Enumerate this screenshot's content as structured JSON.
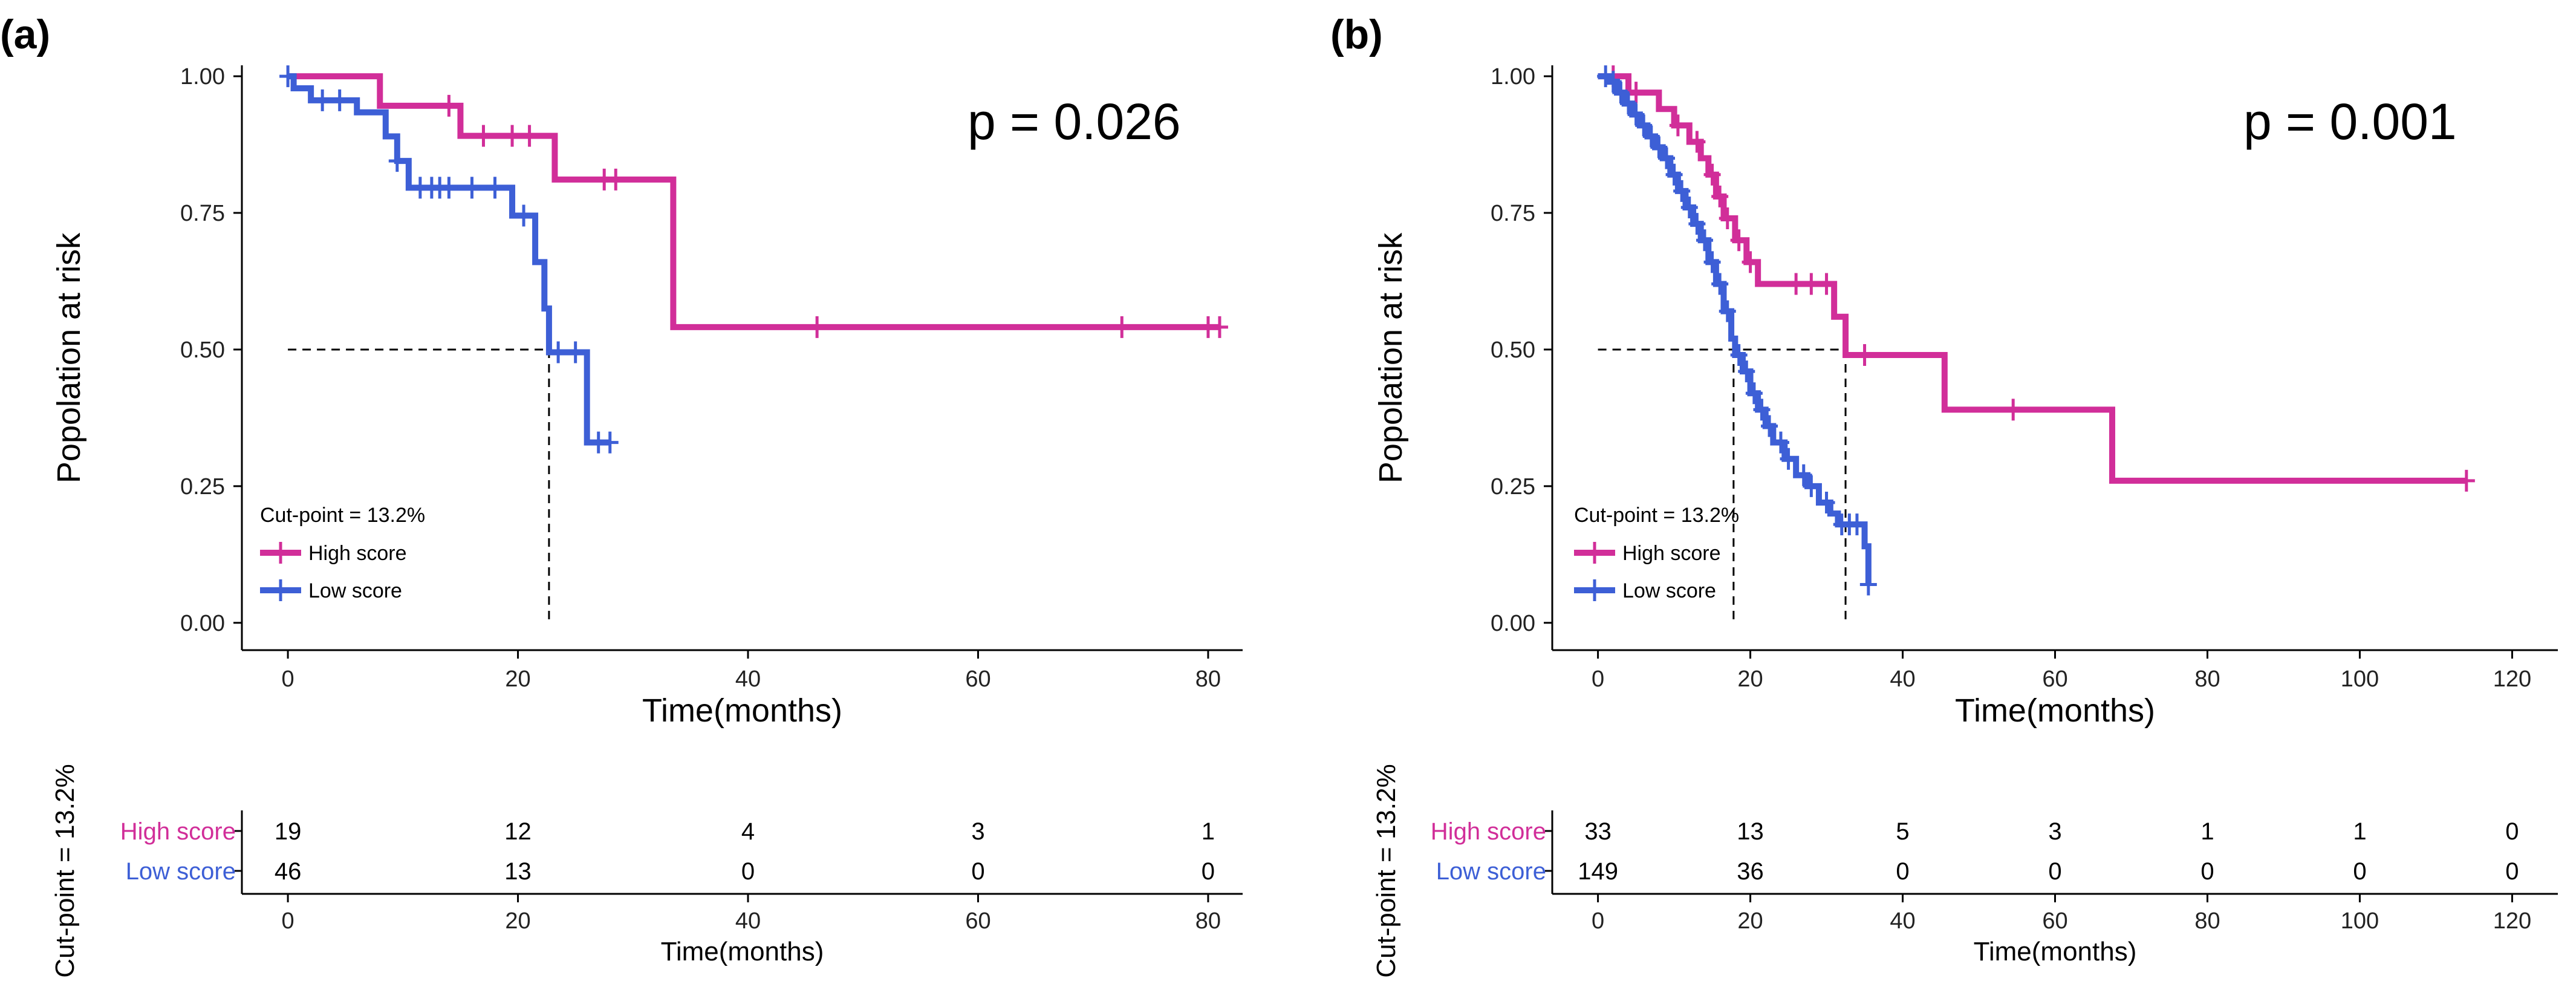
{
  "chart_data": [
    {
      "type": "line",
      "panel_label": "(a)",
      "ylabel": "Popolation at risk",
      "xlabel": "Time(months)",
      "x_ticks": [
        0,
        20,
        40,
        60,
        80
      ],
      "y_ticks": [
        "0.00",
        "0.25",
        "0.50",
        "0.75",
        "1.00"
      ],
      "xlim": [
        -4,
        83
      ],
      "ylim": [
        -0.05,
        1.02
      ],
      "p_value": "p = 0.026",
      "legend_title": "Cut-point = 13.2%",
      "legend_position": "bottom-left",
      "median_line": {
        "y": 0.5,
        "x_end": 22.7
      },
      "series": [
        {
          "name": "High score",
          "color": "#d12e99",
          "steps": [
            [
              0,
              1.0
            ],
            [
              8,
              0.946
            ],
            [
              15,
              0.891
            ],
            [
              23.2,
              0.811
            ],
            [
              33.5,
              0.541
            ],
            [
              81,
              0.541
            ]
          ],
          "censors": [
            [
              14,
              0.946
            ],
            [
              17,
              0.891
            ],
            [
              19.5,
              0.891
            ],
            [
              21,
              0.891
            ],
            [
              27.5,
              0.811
            ],
            [
              28.5,
              0.811
            ],
            [
              46,
              0.541
            ],
            [
              72.5,
              0.541
            ],
            [
              80,
              0.541
            ],
            [
              81,
              0.541
            ]
          ]
        },
        {
          "name": "Low score",
          "color": "#3d5fd6",
          "steps": [
            [
              0,
              1.0
            ],
            [
              0.5,
              0.978
            ],
            [
              2,
              0.956
            ],
            [
              6,
              0.934
            ],
            [
              8.5,
              0.89
            ],
            [
              9.5,
              0.845
            ],
            [
              10.5,
              0.796
            ],
            [
              19.5,
              0.745
            ],
            [
              21.5,
              0.66
            ],
            [
              22.3,
              0.575
            ],
            [
              22.7,
              0.495
            ],
            [
              26,
              0.33
            ],
            [
              28,
              0.33
            ]
          ],
          "censors": [
            [
              0,
              1.0
            ],
            [
              3,
              0.956
            ],
            [
              4.5,
              0.956
            ],
            [
              9.5,
              0.845
            ],
            [
              11.5,
              0.796
            ],
            [
              12.5,
              0.796
            ],
            [
              13.2,
              0.796
            ],
            [
              14,
              0.796
            ],
            [
              16,
              0.796
            ],
            [
              18,
              0.796
            ],
            [
              20.5,
              0.745
            ],
            [
              23.5,
              0.495
            ],
            [
              25,
              0.495
            ],
            [
              27,
              0.33
            ],
            [
              28,
              0.33
            ]
          ]
        }
      ],
      "risk_table": {
        "ylabel": "Cut-point = 13.2%",
        "xlabel": "Time(months)",
        "x": [
          0,
          20,
          40,
          60,
          80
        ],
        "rows": [
          {
            "name": "High score",
            "values": [
              "19",
              "12",
              "4",
              "3",
              "1"
            ]
          },
          {
            "name": "Low score",
            "values": [
              "46",
              "13",
              "0",
              "0",
              "0"
            ]
          }
        ]
      }
    },
    {
      "type": "line",
      "panel_label": "(b)",
      "ylabel": "Popolation at risk",
      "xlabel": "Time(months)",
      "x_ticks": [
        0,
        20,
        40,
        60,
        80,
        100,
        120
      ],
      "y_ticks": [
        "0.00",
        "0.25",
        "0.50",
        "0.75",
        "1.00"
      ],
      "xlim": [
        -6,
        126
      ],
      "ylim": [
        -0.05,
        1.02
      ],
      "p_value": "p = 0.001",
      "legend_title": "Cut-point = 13.2%",
      "legend_position": "bottom-left",
      "median_line": {
        "y": 0.5,
        "x_end": 32.5,
        "drops": [
          17.8,
          32.5
        ]
      },
      "series": [
        {
          "name": "High score",
          "color": "#d12e99",
          "steps": [
            [
              0,
              1.0
            ],
            [
              4,
              0.97
            ],
            [
              8,
              0.94
            ],
            [
              10,
              0.91
            ],
            [
              12,
              0.88
            ],
            [
              13.5,
              0.85
            ],
            [
              14.5,
              0.82
            ],
            [
              15.5,
              0.78
            ],
            [
              16.5,
              0.74
            ],
            [
              18,
              0.7
            ],
            [
              19.5,
              0.66
            ],
            [
              21,
              0.62
            ],
            [
              31,
              0.56
            ],
            [
              32.5,
              0.49
            ],
            [
              45.5,
              0.39
            ],
            [
              67.5,
              0.26
            ],
            [
              114,
              0.26
            ]
          ],
          "censors": [
            [
              2,
              1.0
            ],
            [
              5,
              0.97
            ],
            [
              10.5,
              0.91
            ],
            [
              13,
              0.88
            ],
            [
              15,
              0.82
            ],
            [
              16,
              0.78
            ],
            [
              17,
              0.74
            ],
            [
              18.5,
              0.7
            ],
            [
              20,
              0.66
            ],
            [
              26,
              0.62
            ],
            [
              28,
              0.62
            ],
            [
              30,
              0.62
            ],
            [
              35,
              0.49
            ],
            [
              54.5,
              0.39
            ],
            [
              114,
              0.26
            ]
          ]
        },
        {
          "name": "Low score",
          "color": "#3d5fd6",
          "steps": [
            [
              0,
              1.0
            ],
            [
              1.5,
              0.99
            ],
            [
              2.5,
              0.97
            ],
            [
              3.5,
              0.95
            ],
            [
              4.5,
              0.93
            ],
            [
              5.5,
              0.91
            ],
            [
              6.5,
              0.89
            ],
            [
              7.5,
              0.87
            ],
            [
              8.5,
              0.85
            ],
            [
              9.5,
              0.82
            ],
            [
              10.5,
              0.79
            ],
            [
              11.5,
              0.76
            ],
            [
              12.5,
              0.73
            ],
            [
              13.5,
              0.7
            ],
            [
              14.5,
              0.66
            ],
            [
              15.5,
              0.62
            ],
            [
              16.5,
              0.57
            ],
            [
              17.5,
              0.52
            ],
            [
              18,
              0.49
            ],
            [
              19,
              0.46
            ],
            [
              20,
              0.42
            ],
            [
              21,
              0.39
            ],
            [
              22,
              0.36
            ],
            [
              23,
              0.33
            ],
            [
              24.5,
              0.3
            ],
            [
              26,
              0.27
            ],
            [
              27.5,
              0.25
            ],
            [
              29,
              0.22
            ],
            [
              30.5,
              0.2
            ],
            [
              31.5,
              0.18
            ],
            [
              35,
              0.14
            ],
            [
              35.5,
              0.07
            ]
          ],
          "censors": [
            [
              1,
              1.0
            ],
            [
              2,
              0.99
            ],
            [
              3,
              0.97
            ],
            [
              4,
              0.95
            ],
            [
              5,
              0.93
            ],
            [
              6,
              0.91
            ],
            [
              7,
              0.89
            ],
            [
              8,
              0.87
            ],
            [
              9,
              0.85
            ],
            [
              10,
              0.82
            ],
            [
              11,
              0.79
            ],
            [
              12,
              0.76
            ],
            [
              13,
              0.73
            ],
            [
              14,
              0.7
            ],
            [
              15,
              0.66
            ],
            [
              16,
              0.62
            ],
            [
              17,
              0.57
            ],
            [
              18.5,
              0.49
            ],
            [
              19.5,
              0.46
            ],
            [
              20.5,
              0.42
            ],
            [
              21.5,
              0.39
            ],
            [
              22.5,
              0.36
            ],
            [
              24,
              0.33
            ],
            [
              25,
              0.3
            ],
            [
              27,
              0.27
            ],
            [
              28,
              0.25
            ],
            [
              30,
              0.22
            ],
            [
              32,
              0.18
            ],
            [
              33,
              0.18
            ],
            [
              34,
              0.18
            ],
            [
              35.5,
              0.07
            ]
          ]
        }
      ],
      "risk_table": {
        "ylabel": "Cut-point = 13.2%",
        "xlabel": "Time(months)",
        "x": [
          0,
          20,
          40,
          60,
          80,
          100,
          120
        ],
        "rows": [
          {
            "name": "High score",
            "values": [
              "33",
              "13",
              "5",
              "3",
              "1",
              "1",
              "0"
            ]
          },
          {
            "name": "Low score",
            "values": [
              "149",
              "36",
              "0",
              "0",
              "0",
              "0",
              "0"
            ]
          }
        ]
      }
    }
  ]
}
